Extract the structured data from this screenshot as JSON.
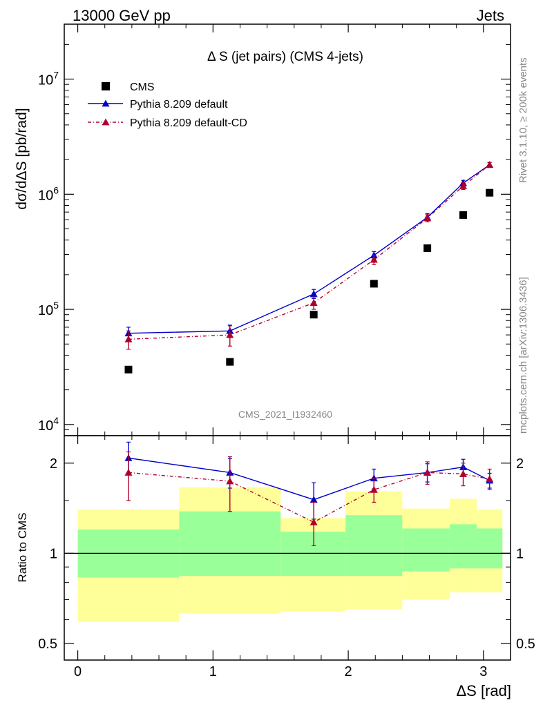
{
  "header": {
    "left": "13000 GeV pp",
    "right": "Jets"
  },
  "side_labels": {
    "rivet": "Rivet 3.1.10, ≥ 200k events",
    "mcplots": "mcplots.cern.ch [arXiv:1306.3436]"
  },
  "chart_data": [
    {
      "type": "scatter",
      "title": "Δ S (jet pairs) (CMS 4-jets)",
      "watermark": "CMS_2021_I1932460",
      "ylabel": "dσ/dΔS [pb/rad]",
      "xlabel": "",
      "xlim": [
        -0.1,
        3.2
      ],
      "ylim": [
        8000,
        30000000
      ],
      "yscale": "log",
      "y_ticks": [
        {
          "value": 10000,
          "base": "10",
          "exp": "4"
        },
        {
          "value": 100000,
          "base": "10",
          "exp": "5"
        },
        {
          "value": 1000000,
          "base": "10",
          "exp": "6"
        },
        {
          "value": 10000000,
          "base": "10",
          "exp": "7"
        }
      ],
      "legend_position": "top-left",
      "series": [
        {
          "name": "CMS",
          "style": "square",
          "color": "#000000",
          "x": [
            0.375,
            1.125,
            1.745,
            2.19,
            2.585,
            2.85,
            3.045
          ],
          "y": [
            30000,
            35000,
            90000,
            167000,
            340000,
            660000,
            1030000
          ]
        },
        {
          "name": "Pythia 8.209 default",
          "style": "triangle-solid",
          "color": "#0000cc",
          "x": [
            0.375,
            1.125,
            1.745,
            2.19,
            2.585,
            2.85,
            3.045
          ],
          "y": [
            62000,
            65000,
            136000,
            295000,
            630000,
            1250000,
            1800000
          ],
          "err_low": [
            54000,
            57000,
            124000,
            273000,
            590000,
            1180000,
            1710000
          ],
          "err_high": [
            70000,
            73000,
            149000,
            318000,
            680000,
            1320000,
            1890000
          ]
        },
        {
          "name": "Pythia 8.209 default-CD",
          "style": "triangle-dashdot",
          "color": "#b0002a",
          "x": [
            0.375,
            1.125,
            1.745,
            2.19,
            2.585,
            2.85,
            3.045
          ],
          "y": [
            55000,
            60000,
            114000,
            270000,
            620000,
            1180000,
            1800000
          ],
          "err_low": [
            45000,
            48000,
            100000,
            245000,
            575000,
            1100000,
            1710000
          ],
          "err_high": [
            65000,
            72000,
            128000,
            295000,
            665000,
            1260000,
            1890000
          ]
        }
      ]
    },
    {
      "type": "scatter",
      "ylabel": "Ratio to CMS",
      "xlabel": "ΔS [rad]",
      "xlim": [
        -0.1,
        3.2
      ],
      "ylim": [
        0.44,
        2.47
      ],
      "yscale": "log",
      "x_ticks": [
        0,
        1,
        2,
        3
      ],
      "y_ticks": [
        0.5,
        1,
        2
      ],
      "reference_line": 1,
      "bands": [
        {
          "x0": 0.0,
          "x1": 0.75,
          "yellow": [
            0.59,
            1.4
          ],
          "green": [
            0.83,
            1.2
          ]
        },
        {
          "x0": 0.75,
          "x1": 1.5,
          "yellow": [
            0.63,
            1.66
          ],
          "green": [
            0.84,
            1.38
          ]
        },
        {
          "x0": 1.5,
          "x1": 1.98,
          "yellow": [
            0.64,
            1.31
          ],
          "green": [
            0.84,
            1.18
          ]
        },
        {
          "x0": 1.98,
          "x1": 2.4,
          "yellow": [
            0.65,
            1.61
          ],
          "green": [
            0.84,
            1.34
          ]
        },
        {
          "x0": 2.4,
          "x1": 2.75,
          "yellow": [
            0.7,
            1.41
          ],
          "green": [
            0.87,
            1.21
          ]
        },
        {
          "x0": 2.75,
          "x1": 2.95,
          "yellow": [
            0.74,
            1.52
          ],
          "green": [
            0.89,
            1.25
          ]
        },
        {
          "x0": 2.95,
          "x1": 3.14,
          "yellow": [
            0.74,
            1.4
          ],
          "green": [
            0.89,
            1.21
          ]
        }
      ],
      "series": [
        {
          "name": "Pythia 8.209 default",
          "color": "#0000cc",
          "x": [
            0.375,
            1.125,
            1.745,
            2.19,
            2.585,
            2.85,
            3.045
          ],
          "y": [
            2.08,
            1.86,
            1.51,
            1.78,
            1.86,
            1.94,
            1.75
          ],
          "err_low": [
            1.85,
            1.65,
            1.3,
            1.64,
            1.73,
            1.82,
            1.65
          ],
          "err_high": [
            2.35,
            2.07,
            1.72,
            1.91,
            1.99,
            2.06,
            1.85
          ]
        },
        {
          "name": "Pythia 8.209 default-CD",
          "color": "#b0002a",
          "x": [
            0.375,
            1.125,
            1.745,
            2.19,
            2.585,
            2.85,
            3.045
          ],
          "y": [
            1.86,
            1.74,
            1.27,
            1.63,
            1.86,
            1.84,
            1.77
          ],
          "err_low": [
            1.5,
            1.38,
            1.06,
            1.48,
            1.7,
            1.68,
            1.63
          ],
          "err_high": [
            2.18,
            2.1,
            1.48,
            1.78,
            2.02,
            2.0,
            1.91
          ]
        }
      ]
    }
  ]
}
